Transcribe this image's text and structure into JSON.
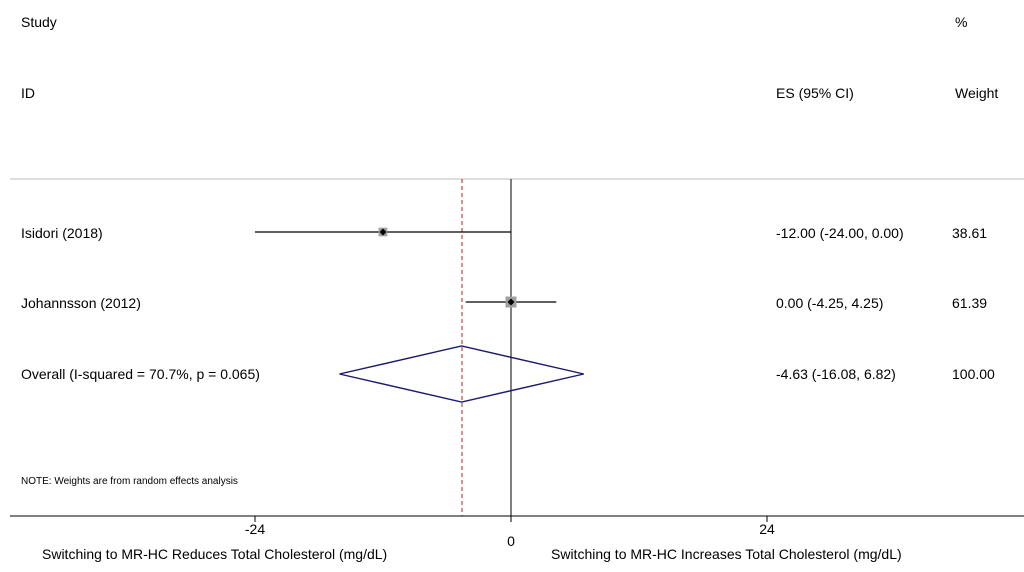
{
  "header": {
    "study_line1": "Study",
    "study_line2": "ID",
    "es_header": "ES (95% CI)",
    "weight_line1": "%",
    "weight_line2": "Weight"
  },
  "note": "NOTE: Weights are from random effects analysis",
  "colors": {
    "diamond": "#1a1a6e",
    "null_line": "#000000",
    "overall_line": "#b22222",
    "box": "#a0a0a0"
  },
  "chart_data": {
    "type": "forest",
    "xlim": [
      -48,
      48
    ],
    "xticks": [
      -24,
      0,
      24
    ],
    "xtick_labels": [
      "-24",
      "0",
      "24"
    ],
    "xlabel_left": "Switching to MR-HC Reduces Total Cholesterol (mg/dL)",
    "xlabel_right": "Switching to MR-HC Increases Total Cholesterol (mg/dL)",
    "null_value": 0,
    "studies": [
      {
        "label": "Isidori (2018)",
        "es": -12.0,
        "lower": -24.0,
        "upper": 0.0,
        "es_text": "-12.00 (-24.00, 0.00)",
        "weight": "38.61"
      },
      {
        "label": "Johannsson  (2012)",
        "es": 0.0,
        "lower": -4.25,
        "upper": 4.25,
        "es_text": "0.00 (-4.25, 4.25)",
        "weight": "61.39"
      }
    ],
    "overall": {
      "label": "Overall  (I-squared = 70.7%, p = 0.065)",
      "es": -4.63,
      "lower": -16.08,
      "upper": 6.82,
      "es_text": "-4.63 (-16.08, 6.82)",
      "weight": "100.00"
    }
  }
}
